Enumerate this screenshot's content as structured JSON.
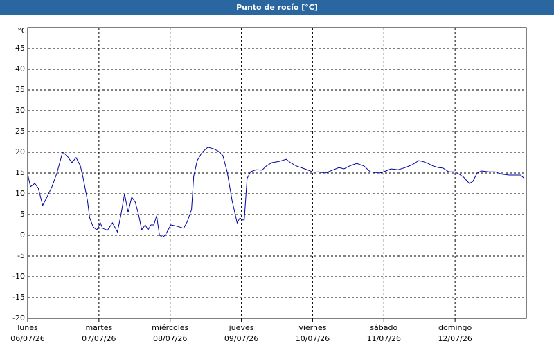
{
  "chart_data": {
    "type": "line",
    "title": "Punto de rocío [°C]",
    "y_label": "°C",
    "x": [
      0,
      0.04,
      0.1,
      0.15,
      0.21,
      0.27,
      0.34,
      0.41,
      0.49,
      0.55,
      0.62,
      0.68,
      0.74,
      0.78,
      0.84,
      0.87,
      0.92,
      0.97,
      1.02,
      1.05,
      1.12,
      1.19,
      1.26,
      1.31,
      1.36,
      1.41,
      1.46,
      1.51,
      1.56,
      1.6,
      1.65,
      1.69,
      1.73,
      1.77,
      1.81,
      1.85,
      1.9,
      1.94,
      2.01,
      2.09,
      2.19,
      2.24,
      2.3,
      2.33,
      2.38,
      2.45,
      2.53,
      2.61,
      2.67,
      2.74,
      2.8,
      2.87,
      2.94,
      2.98,
      3.01,
      3.04,
      3.08,
      3.13,
      3.21,
      3.29,
      3.35,
      3.43,
      3.53,
      3.63,
      3.69,
      3.77,
      3.89,
      4.01,
      4.08,
      4.18,
      4.28,
      4.37,
      4.44,
      4.52,
      4.62,
      4.72,
      4.81,
      4.94,
      5.03,
      5.1,
      5.2,
      5.3,
      5.4,
      5.49,
      5.56,
      5.62,
      5.69,
      5.77,
      5.83,
      5.91,
      5.99,
      6.06,
      6.12,
      6.2,
      6.25,
      6.31,
      6.37,
      6.47,
      6.56,
      6.66,
      6.76,
      6.85,
      6.92,
      6.97
    ],
    "values": [
      14.7,
      11.7,
      12.5,
      11.3,
      7.2,
      9.2,
      11.7,
      15,
      20,
      19.2,
      17.5,
      18.7,
      16.7,
      13.7,
      8.3,
      4.2,
      2,
      1.3,
      3,
      1.7,
      1.2,
      3,
      0.8,
      5,
      10,
      5.5,
      9.2,
      8,
      4.7,
      1.3,
      2.5,
      1.3,
      2.5,
      2.5,
      4.7,
      0,
      -0.5,
      0.3,
      2.5,
      2.2,
      1.7,
      3.3,
      6.2,
      14.2,
      18,
      20,
      21.2,
      20.8,
      20.3,
      19.2,
      15.3,
      8.3,
      3,
      4.2,
      3.7,
      3.7,
      13.7,
      15.3,
      15.8,
      15.7,
      16.7,
      17.5,
      17.8,
      18.3,
      17.5,
      16.7,
      16,
      15.2,
      15.3,
      15,
      15.7,
      16.3,
      16,
      16.7,
      17.3,
      16.7,
      15.3,
      15,
      15.5,
      16,
      15.8,
      16.3,
      17,
      18,
      17.7,
      17.3,
      16.7,
      16.3,
      16.2,
      15.3,
      15.3,
      14.7,
      14,
      12.5,
      13,
      15,
      15.5,
      15.3,
      15.3,
      14.7,
      14.5,
      14.5,
      14.5,
      13.7
    ],
    "color": "#0000a0",
    "xlim": [
      0,
      7
    ],
    "xticks": [
      {
        "value": 0,
        "label": "lunes"
      },
      {
        "value": 1,
        "label": "martes"
      },
      {
        "value": 2,
        "label": "miércoles"
      },
      {
        "value": 3,
        "label": "jueves"
      },
      {
        "value": 4,
        "label": "viernes"
      },
      {
        "value": 5,
        "label": "sábado"
      },
      {
        "value": 6,
        "label": "domingo"
      }
    ],
    "xtick_dates": [
      "06/07/26",
      "07/07/26",
      "08/07/26",
      "09/07/26",
      "10/07/26",
      "11/07/26",
      "12/07/26"
    ],
    "ylim": [
      -20,
      50
    ],
    "yticks": [
      -20,
      -15,
      -10,
      -5,
      0,
      5,
      10,
      15,
      20,
      25,
      30,
      35,
      40,
      45
    ],
    "grid": true
  }
}
